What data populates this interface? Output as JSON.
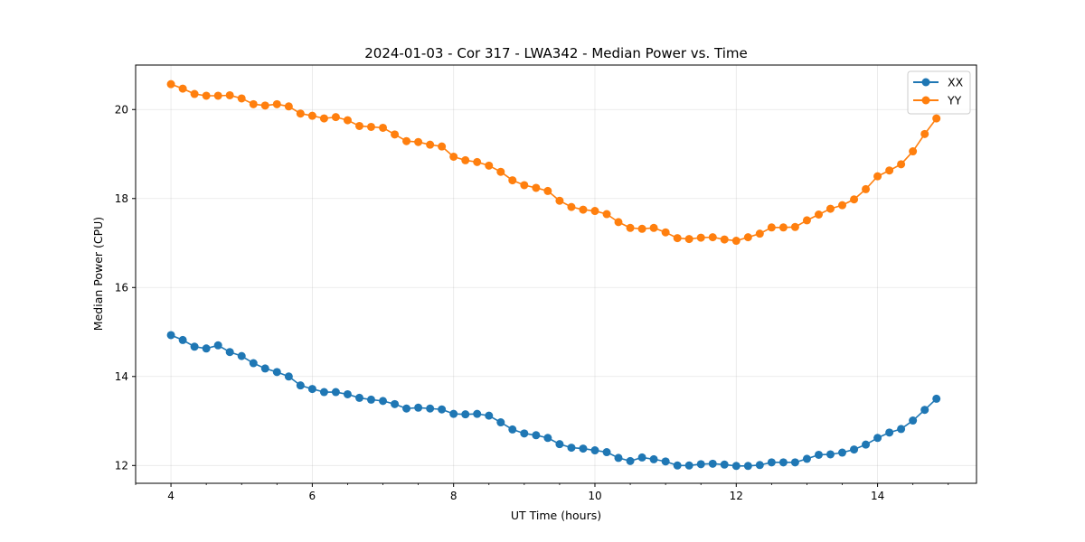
{
  "chart_data": {
    "type": "line",
    "title": "2024-01-03 - Cor 317 - LWA342 - Median Power vs. Time",
    "xlabel": "UT Time (hours)",
    "ylabel": "Median Power (CPU)",
    "xlim": [
      3.5,
      15.4
    ],
    "ylim": [
      11.6,
      21.0
    ],
    "xticks": [
      4,
      6,
      8,
      10,
      12,
      14
    ],
    "yticks": [
      12,
      14,
      16,
      18,
      20
    ],
    "x_minor_step": 0.5,
    "grid": true,
    "legend_position": "top-right",
    "x": [
      4.0,
      4.167,
      4.333,
      4.5,
      4.667,
      4.833,
      5.0,
      5.167,
      5.333,
      5.5,
      5.667,
      5.833,
      6.0,
      6.167,
      6.333,
      6.5,
      6.667,
      6.833,
      7.0,
      7.167,
      7.333,
      7.5,
      7.667,
      7.833,
      8.0,
      8.167,
      8.333,
      8.5,
      8.667,
      8.833,
      9.0,
      9.167,
      9.333,
      9.5,
      9.667,
      9.833,
      10.0,
      10.167,
      10.333,
      10.5,
      10.667,
      10.833,
      11.0,
      11.167,
      11.333,
      11.5,
      11.667,
      11.833,
      12.0,
      12.167,
      12.333,
      12.5,
      12.667,
      12.833,
      13.0,
      13.167,
      13.333,
      13.5,
      13.667,
      13.833,
      14.0,
      14.167,
      14.333,
      14.5,
      14.667,
      14.833
    ],
    "series": [
      {
        "name": "XX",
        "color": "#1f77b4",
        "values": [
          14.93,
          14.82,
          14.67,
          14.63,
          14.7,
          14.55,
          14.46,
          14.3,
          14.18,
          14.1,
          14.0,
          13.8,
          13.72,
          13.65,
          13.65,
          13.6,
          13.52,
          13.48,
          13.45,
          13.38,
          13.28,
          13.3,
          13.28,
          13.26,
          13.16,
          13.15,
          13.16,
          13.12,
          12.97,
          12.81,
          12.72,
          12.68,
          12.62,
          12.48,
          12.4,
          12.38,
          12.34,
          12.3,
          12.17,
          12.1,
          12.18,
          12.14,
          12.09,
          12.0,
          12.0,
          12.03,
          12.04,
          12.02,
          11.99,
          11.99,
          12.01,
          12.07,
          12.07,
          12.07,
          12.15,
          12.24,
          12.25,
          12.29,
          12.36,
          12.47,
          12.62,
          12.74,
          12.82,
          13.01,
          13.25,
          13.5
        ]
      },
      {
        "name": "YY",
        "color": "#ff7f0e",
        "values": [
          20.57,
          20.47,
          20.35,
          20.31,
          20.31,
          20.32,
          20.25,
          20.12,
          20.09,
          20.12,
          20.07,
          19.91,
          19.86,
          19.8,
          19.83,
          19.76,
          19.63,
          19.61,
          19.59,
          19.44,
          19.29,
          19.27,
          19.21,
          19.17,
          18.94,
          18.86,
          18.82,
          18.74,
          18.6,
          18.41,
          18.3,
          18.24,
          18.17,
          17.95,
          17.81,
          17.75,
          17.72,
          17.65,
          17.47,
          17.34,
          17.32,
          17.34,
          17.24,
          17.11,
          17.09,
          17.12,
          17.13,
          17.08,
          17.05,
          17.13,
          17.21,
          17.35,
          17.35,
          17.36,
          17.51,
          17.64,
          17.77,
          17.85,
          17.98,
          18.21,
          18.5,
          18.63,
          18.77,
          19.06,
          19.45,
          19.8
        ]
      }
    ]
  }
}
